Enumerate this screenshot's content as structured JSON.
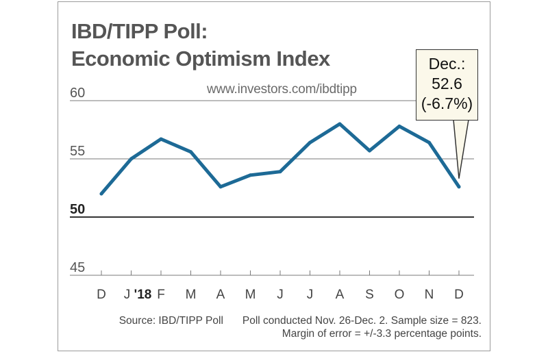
{
  "title_line1": "IBD/TIPP Poll:",
  "title_line2": "Economic Optimism Index",
  "url": "www.investors.com/ibdtipp",
  "callout": {
    "line1": "Dec.:",
    "line2": "52.6",
    "line3": "(-6.7%)"
  },
  "source_left": "Source: IBD/TIPP Poll",
  "source_right": "Poll conducted Nov. 26-Dec. 2. Sample size = 823.",
  "source_line2": "Margin of error = +/-3.3 percentage points.",
  "chart_data": {
    "type": "line",
    "title": "IBD/TIPP Poll: Economic Optimism Index",
    "categories": [
      "D",
      "J",
      "F",
      "M",
      "A",
      "M",
      "J",
      "J",
      "A",
      "S",
      "O",
      "N",
      "D"
    ],
    "year_marker": "'18",
    "series": [
      {
        "name": "Economic Optimism Index",
        "values": [
          52.0,
          55.0,
          56.7,
          55.6,
          52.6,
          53.6,
          53.9,
          56.4,
          58.0,
          55.7,
          57.8,
          56.4,
          52.6
        ]
      }
    ],
    "yticks": [
      "60",
      "55",
      "50",
      "45"
    ],
    "ytick_values": [
      60,
      55,
      50,
      45
    ],
    "ylim": [
      45,
      60
    ],
    "baseline_value": 50,
    "grid": true,
    "xlabel": "",
    "ylabel": "",
    "line_color": "#1d6a96"
  }
}
